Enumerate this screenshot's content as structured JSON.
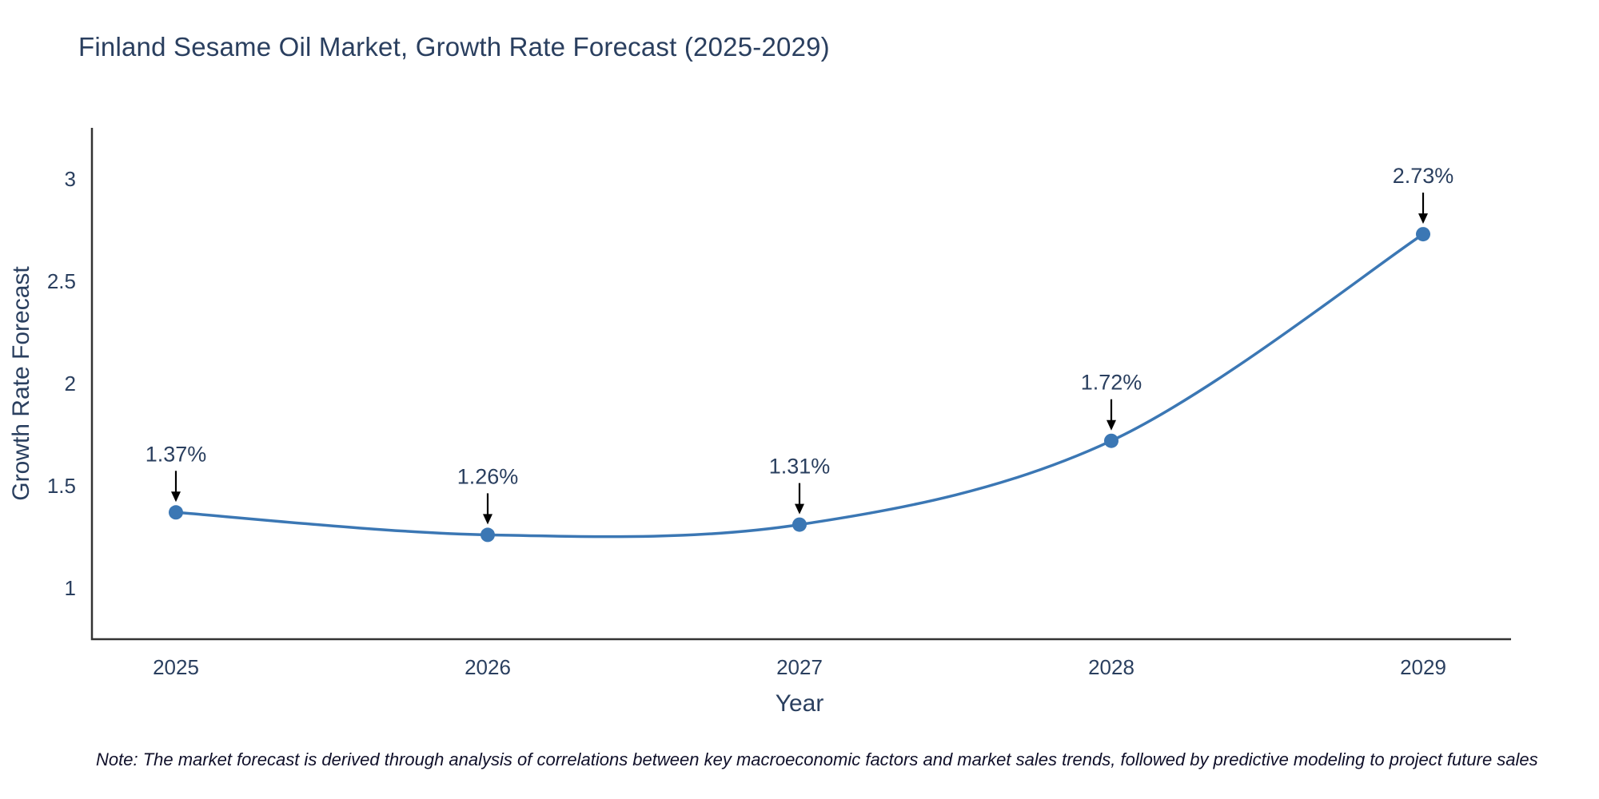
{
  "title": "Finland Sesame Oil Market, Growth Rate Forecast (2025-2029)",
  "note": "Note: The market forecast is derived through analysis of correlations between key macroeconomic factors and market sales trends, followed by predictive modeling to project future sales",
  "chart_data": {
    "type": "line",
    "line_shape": "spline",
    "x": [
      2025,
      2026,
      2027,
      2028,
      2029
    ],
    "series": [
      {
        "name": "Growth Rate Forecast",
        "values": [
          1.37,
          1.26,
          1.31,
          1.72,
          2.73
        ]
      }
    ],
    "point_labels": [
      "1.37%",
      "1.26%",
      "1.31%",
      "1.72%",
      "2.73%"
    ],
    "title": "Finland Sesame Oil Market, Growth Rate Forecast (2025-2029)",
    "xlabel": "Year",
    "ylabel": "Growth Rate Forecast",
    "yticks": [
      1,
      1.5,
      2,
      2.5,
      3
    ],
    "ylim": [
      0.75,
      3.25
    ],
    "grid": false,
    "legend": "none",
    "colors": {
      "line": "#3b77b4",
      "marker": "#3b77b4",
      "text": "#2a3f5f",
      "axis": "#333333",
      "arrow": "#000000",
      "background": "#ffffff"
    }
  }
}
